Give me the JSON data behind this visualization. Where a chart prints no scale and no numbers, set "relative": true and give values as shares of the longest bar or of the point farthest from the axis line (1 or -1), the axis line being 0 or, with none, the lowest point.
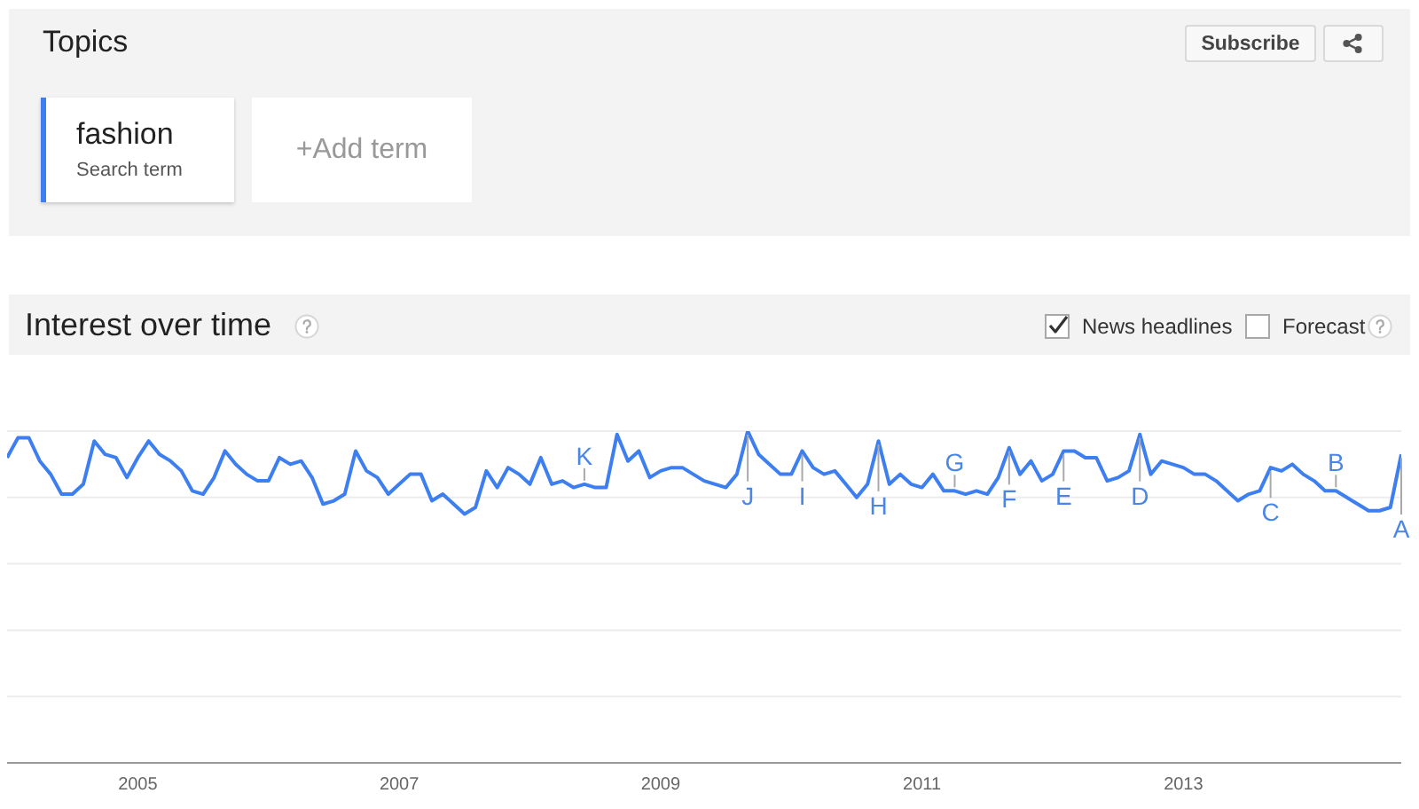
{
  "chart_data": {
    "type": "line",
    "title": "Interest over time",
    "relative": true,
    "grid": true,
    "legend": "top left",
    "x": [
      "2004-01",
      "2004-02",
      "2004-03",
      "2004-04",
      "2004-05",
      "2004-06",
      "2004-07",
      "2004-08",
      "2004-09",
      "2004-10",
      "2004-11",
      "2004-12",
      "2005-01",
      "2005-02",
      "2005-03",
      "2005-04",
      "2005-05",
      "2005-06",
      "2005-07",
      "2005-08",
      "2005-09",
      "2005-10",
      "2005-11",
      "2005-12",
      "2006-01",
      "2006-02",
      "2006-03",
      "2006-04",
      "2006-05",
      "2006-06",
      "2006-07",
      "2006-08",
      "2006-09",
      "2006-10",
      "2006-11",
      "2006-12",
      "2007-01",
      "2007-02",
      "2007-03",
      "2007-04",
      "2007-05",
      "2007-06",
      "2007-07",
      "2007-08",
      "2007-09",
      "2007-10",
      "2007-11",
      "2007-12",
      "2008-01",
      "2008-02",
      "2008-03",
      "2008-04",
      "2008-05",
      "2008-06",
      "2008-07",
      "2008-08",
      "2008-09",
      "2008-10",
      "2008-11",
      "2008-12",
      "2009-01",
      "2009-02",
      "2009-03",
      "2009-04",
      "2009-05",
      "2009-06",
      "2009-07",
      "2009-08",
      "2009-09",
      "2009-10",
      "2009-11",
      "2009-12",
      "2010-01",
      "2010-02",
      "2010-03",
      "2010-04",
      "2010-05",
      "2010-06",
      "2010-07",
      "2010-08",
      "2010-09",
      "2010-10",
      "2010-11",
      "2010-12",
      "2011-01",
      "2011-02",
      "2011-03",
      "2011-04",
      "2011-05",
      "2011-06",
      "2011-07",
      "2011-08",
      "2011-09",
      "2011-10",
      "2011-11",
      "2011-12",
      "2012-01",
      "2012-02",
      "2012-03",
      "2012-04",
      "2012-05",
      "2012-06",
      "2012-07",
      "2012-08",
      "2012-09",
      "2012-10",
      "2012-11",
      "2012-12",
      "2013-01",
      "2013-02",
      "2013-03",
      "2013-04",
      "2013-05",
      "2013-06",
      "2013-07",
      "2013-08",
      "2013-09",
      "2013-10",
      "2013-11",
      "2013-12",
      "2014-01",
      "2014-02",
      "2014-03",
      "2014-04",
      "2014-05",
      "2014-06",
      "2014-07",
      "2014-08",
      "2014-09"
    ],
    "xlim": [
      "2004-01",
      "2014-09"
    ],
    "xticks": [
      "2005",
      "2007",
      "2009",
      "2011",
      "2013"
    ],
    "series": [
      {
        "name": "fashion",
        "color": "#3d7ff0",
        "values": [
          0.92,
          0.98,
          0.98,
          0.91,
          0.87,
          0.81,
          0.81,
          0.84,
          0.97,
          0.93,
          0.92,
          0.86,
          0.92,
          0.97,
          0.93,
          0.91,
          0.88,
          0.82,
          0.81,
          0.86,
          0.94,
          0.9,
          0.87,
          0.85,
          0.85,
          0.92,
          0.9,
          0.91,
          0.86,
          0.78,
          0.79,
          0.81,
          0.94,
          0.88,
          0.86,
          0.81,
          0.84,
          0.87,
          0.87,
          0.79,
          0.81,
          0.78,
          0.75,
          0.77,
          0.88,
          0.83,
          0.89,
          0.87,
          0.84,
          0.92,
          0.84,
          0.85,
          0.83,
          0.84,
          0.83,
          0.83,
          0.99,
          0.91,
          0.94,
          0.86,
          0.88,
          0.89,
          0.89,
          0.87,
          0.85,
          0.84,
          0.83,
          0.87,
          1,
          0.93,
          0.9,
          0.87,
          0.87,
          0.94,
          0.89,
          0.87,
          0.88,
          0.84,
          0.8,
          0.84,
          0.97,
          0.84,
          0.87,
          0.84,
          0.83,
          0.87,
          0.82,
          0.82,
          0.81,
          0.82,
          0.81,
          0.86,
          0.95,
          0.87,
          0.91,
          0.85,
          0.87,
          0.94,
          0.94,
          0.92,
          0.92,
          0.85,
          0.86,
          0.88,
          0.99,
          0.87,
          0.91,
          0.9,
          0.89,
          0.87,
          0.87,
          0.85,
          0.82,
          0.79,
          0.81,
          0.82,
          0.89,
          0.88,
          0.9,
          0.87,
          0.85,
          0.82,
          0.82,
          0.8,
          0.78,
          0.76,
          0.76,
          0.77,
          0.93
        ]
      }
    ],
    "annotations": [
      "Topics",
      "Search term",
      "+Add term",
      "Subscribe",
      "News headlines",
      "Forecast",
      {
        "text": "K",
        "x": "2008-06",
        "y": 0.84
      },
      {
        "text": "J",
        "x": "2009-09",
        "y": 1
      },
      {
        "text": "I",
        "x": "2010-02",
        "y": 0.94
      },
      {
        "text": "H",
        "x": "2010-09",
        "y": 0.97
      },
      {
        "text": "G",
        "x": "2011-04",
        "y": 0.82
      },
      {
        "text": "F",
        "x": "2011-09",
        "y": 0.95
      },
      {
        "text": "E",
        "x": "2012-02",
        "y": 0.94
      },
      {
        "text": "D",
        "x": "2012-09",
        "y": 0.99
      },
      {
        "text": "C",
        "x": "2013-09",
        "y": 0.89
      },
      {
        "text": "B",
        "x": "2014-03",
        "y": 0.82
      },
      {
        "text": "A",
        "x": "2014-09",
        "y": 0.93
      }
    ]
  }
}
